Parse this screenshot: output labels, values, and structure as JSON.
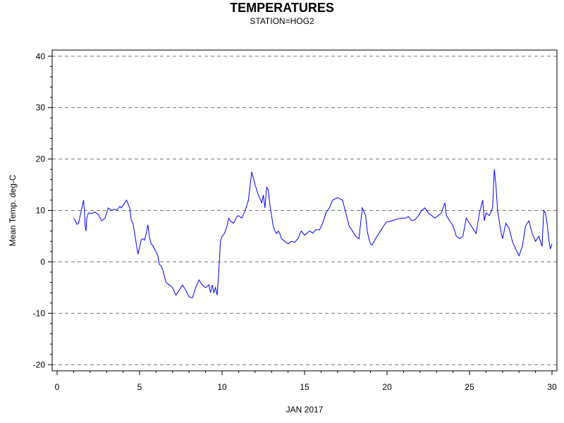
{
  "chart_data": {
    "type": "line",
    "title": "TEMPERATURES",
    "subtitle": "STATION=HOG2",
    "xlabel": "JAN 2017",
    "ylabel": "Mean Temp. deg-C",
    "xlim": [
      -0.3,
      30.3
    ],
    "ylim": [
      -21.2,
      41.2
    ],
    "x_ticks": [
      0,
      5,
      10,
      15,
      20,
      25,
      30
    ],
    "y_ticks": [
      -20,
      -10,
      0,
      10,
      20,
      30,
      40
    ],
    "grid": "horizontal dashed",
    "colors": {
      "line": "#0000ff",
      "grid": "#777777",
      "axis": "#000000"
    },
    "series": [
      {
        "x": [
          1.0,
          1.1,
          1.2,
          1.3,
          1.4,
          1.5,
          1.6,
          1.65,
          1.7,
          1.75,
          1.8,
          1.9,
          2.0,
          2.1,
          2.3,
          2.5,
          2.7,
          2.9,
          3.1,
          3.3,
          3.5,
          3.6,
          3.8,
          3.9,
          4.0,
          4.2,
          4.4,
          4.5,
          4.6,
          4.8,
          4.9,
          5.1,
          5.2,
          5.3,
          5.4,
          5.5,
          5.6,
          5.7,
          5.8,
          5.9,
          6.0,
          6.1,
          6.2,
          6.3,
          6.4,
          6.6,
          6.8,
          7.0,
          7.2,
          7.4,
          7.6,
          7.8,
          8.0,
          8.2,
          8.4,
          8.6,
          8.8,
          9.0,
          9.2,
          9.3,
          9.4,
          9.5,
          9.6,
          9.7,
          9.8,
          9.9,
          10.0,
          10.1,
          10.2,
          10.3,
          10.4,
          10.5,
          10.7,
          10.9,
          11.0,
          11.2,
          11.4,
          11.6,
          11.8,
          12.0,
          12.2,
          12.4,
          12.5,
          12.6,
          12.7,
          12.8,
          12.9,
          13.0,
          13.1,
          13.2,
          13.3,
          13.4,
          13.5,
          13.6,
          13.8,
          14.0,
          14.2,
          14.4,
          14.6,
          14.8,
          15.0,
          15.3,
          15.5,
          15.7,
          15.9,
          16.1,
          16.3,
          16.5,
          16.7,
          17.0,
          17.3,
          17.5,
          17.7,
          17.9,
          18.1,
          18.3,
          18.5,
          18.7,
          18.8,
          18.9,
          19.0,
          19.1,
          19.3,
          19.5,
          19.7,
          19.9,
          20.0,
          20.1,
          20.3,
          20.5,
          20.7,
          20.9,
          21.1,
          21.3,
          21.5,
          21.7,
          21.9,
          22.1,
          22.3,
          22.5,
          22.7,
          22.9,
          23.1,
          23.3,
          23.5,
          23.6,
          23.8,
          24.0,
          24.2,
          24.4,
          24.6,
          24.8,
          25.0,
          25.2,
          25.4,
          25.6,
          25.8,
          25.9,
          26.0,
          26.2,
          26.4,
          26.5,
          26.6,
          26.7,
          26.8,
          26.9,
          27.0,
          27.2,
          27.4,
          27.6,
          27.8,
          28.0,
          28.2,
          28.4,
          28.6,
          28.8,
          29.0,
          29.2,
          29.4,
          29.5,
          29.6,
          29.7,
          29.8,
          29.9,
          30.0
        ],
        "y": [
          8.5,
          8.0,
          7.3,
          7.5,
          9.0,
          10.5,
          12.0,
          10.0,
          7.0,
          6.0,
          8.5,
          9.5,
          9.5,
          9.4,
          9.7,
          9.2,
          8.0,
          8.5,
          10.5,
          10.0,
          10.2,
          10.0,
          10.8,
          10.5,
          11.0,
          12.0,
          10.5,
          8.0,
          7.5,
          3.5,
          1.5,
          4.3,
          4.5,
          4.2,
          5.5,
          7.2,
          4.7,
          3.5,
          3.2,
          2.5,
          2.0,
          1.2,
          -0.5,
          -0.8,
          -1.5,
          -4.0,
          -4.5,
          -5.0,
          -6.5,
          -5.5,
          -4.5,
          -5.5,
          -6.8,
          -7.0,
          -5.0,
          -3.5,
          -4.5,
          -5.0,
          -4.5,
          -6.0,
          -4.5,
          -6.0,
          -5.0,
          -6.5,
          -2.0,
          4.0,
          5.0,
          5.3,
          6.0,
          7.0,
          8.5,
          8.0,
          7.5,
          8.8,
          9.0,
          8.5,
          10.0,
          12.0,
          17.5,
          15.0,
          13.0,
          11.5,
          13.0,
          10.5,
          14.5,
          14.0,
          11.0,
          9.0,
          7.0,
          6.0,
          5.5,
          6.0,
          5.5,
          4.5,
          4.0,
          3.5,
          4.0,
          3.8,
          4.5,
          6.0,
          5.2,
          6.0,
          5.6,
          6.3,
          6.2,
          7.5,
          9.5,
          10.5,
          12.0,
          12.5,
          12.0,
          9.5,
          7.0,
          6.0,
          5.0,
          4.5,
          10.5,
          9.0,
          6.0,
          4.5,
          3.5,
          3.3,
          4.5,
          5.5,
          6.5,
          7.5,
          7.8,
          7.8,
          8.0,
          8.2,
          8.4,
          8.5,
          8.5,
          8.8,
          8.0,
          8.2,
          9.0,
          10.0,
          10.5,
          9.5,
          9.0,
          8.5,
          9.0,
          9.5,
          11.5,
          9.0,
          8.0,
          7.0,
          5.0,
          4.5,
          5.0,
          8.5,
          7.5,
          6.5,
          5.5,
          9.5,
          12.0,
          8.0,
          9.5,
          9.0,
          10.5,
          18.0,
          15.0,
          10.0,
          8.0,
          6.0,
          4.5,
          7.5,
          6.5,
          4.0,
          2.5,
          1.2,
          3.0,
          7.0,
          8.0,
          5.5,
          4.0,
          5.0,
          3.0,
          10.0,
          9.5,
          7.5,
          4.5,
          2.5,
          3.5
        ]
      }
    ]
  }
}
